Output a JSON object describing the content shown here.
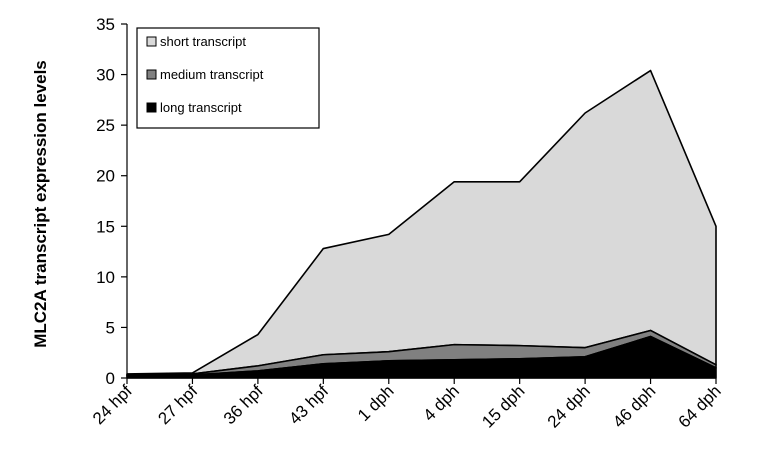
{
  "chart_data": {
    "type": "area",
    "stacked": true,
    "categories": [
      "24 hpf",
      "27 hpf",
      "36 hpf",
      "43 hpf",
      "1 dph",
      "4 dph",
      "15 dph",
      "24 dph",
      "46 dph",
      "64 dph"
    ],
    "series": [
      {
        "name": "long transcript",
        "color": "#000000",
        "values": [
          0.2,
          0.3,
          0.7,
          1.4,
          1.7,
          1.8,
          1.9,
          2.1,
          4.1,
          1.0
        ]
      },
      {
        "name": "medium transcript",
        "color": "#808080",
        "values": [
          0.1,
          0.1,
          0.5,
          0.9,
          0.9,
          1.5,
          1.3,
          0.9,
          0.6,
          0.3
        ]
      },
      {
        "name": "short transcript",
        "color": "#d9d9d9",
        "values": [
          0.1,
          0.1,
          3.1,
          10.5,
          11.6,
          16.1,
          16.2,
          23.2,
          25.7,
          13.7
        ]
      }
    ],
    "legend_order": [
      "short transcript",
      "medium transcript",
      "long transcript"
    ],
    "ylabel": "MLC2A transcript expression levels",
    "xlabel": "",
    "ylim": [
      0,
      35
    ],
    "yticks": [
      0,
      5,
      10,
      15,
      20,
      25,
      30,
      35
    ],
    "grid": false,
    "legend_position": "top-left"
  }
}
